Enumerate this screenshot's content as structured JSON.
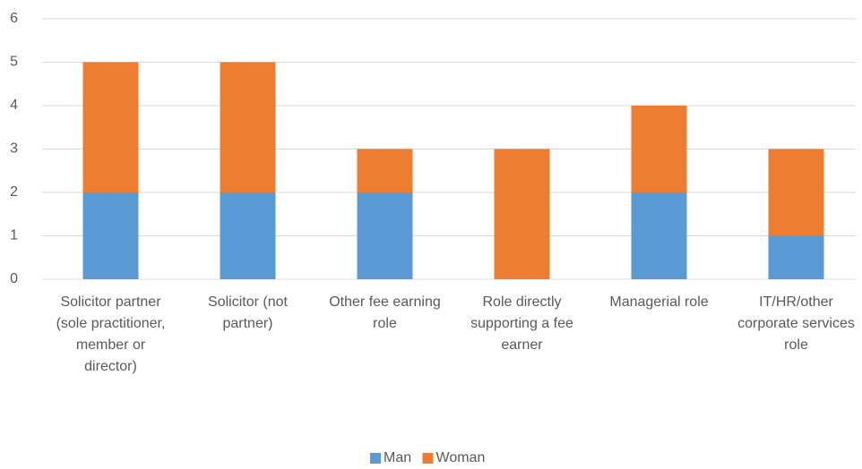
{
  "chart_data": {
    "type": "stacked_bar",
    "categories": [
      "Solicitor partner (sole practitioner, member or director)",
      "Solicitor (not partner)",
      "Other fee earning role",
      "Role directly supporting a fee earner",
      "Managerial role",
      "IT/HR/other corporate services role"
    ],
    "series": [
      {
        "name": "Man",
        "color": "#5b9bd5",
        "values": [
          2,
          2,
          2,
          0,
          2,
          1
        ]
      },
      {
        "name": "Woman",
        "color": "#ed7d31",
        "values": [
          3,
          3,
          1,
          3,
          2,
          2
        ]
      }
    ],
    "ylim": [
      0,
      6
    ],
    "yticks": [
      0,
      1,
      2,
      3,
      4,
      5,
      6
    ],
    "grid": true,
    "legend": "bottom"
  }
}
